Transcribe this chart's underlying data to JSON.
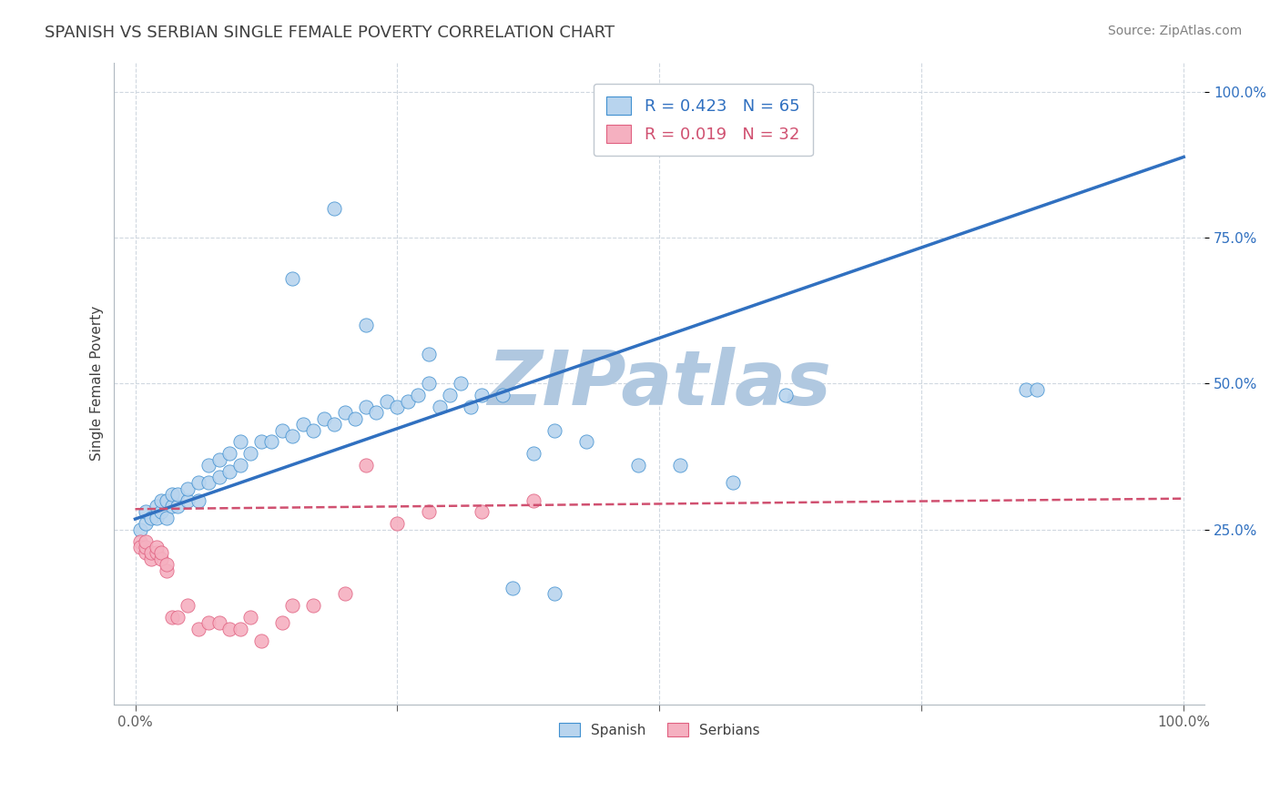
{
  "title": "SPANISH VS SERBIAN SINGLE FEMALE POVERTY CORRELATION CHART",
  "source": "Source: ZipAtlas.com",
  "ylabel": "Single Female Poverty",
  "xlim": [
    -0.02,
    1.02
  ],
  "ylim": [
    -0.05,
    1.05
  ],
  "xticks": [
    0,
    0.25,
    0.5,
    0.75,
    1.0
  ],
  "xticklabels": [
    "0.0%",
    "",
    "",
    "",
    "100.0%"
  ],
  "yticks": [
    0.25,
    0.5,
    0.75,
    1.0
  ],
  "yticklabels": [
    "25.0%",
    "50.0%",
    "75.0%",
    "100.0%"
  ],
  "spanish_R": 0.423,
  "spanish_N": 65,
  "serbian_R": 0.019,
  "serbian_N": 32,
  "spanish_color": "#b8d4ee",
  "serbian_color": "#f5b0c0",
  "spanish_edge_color": "#4090d0",
  "serbian_edge_color": "#e06080",
  "spanish_trend_color": "#3070c0",
  "serbian_trend_color": "#d05070",
  "watermark": "ZIPatlas",
  "watermark_color_zip": "#b0c8e0",
  "watermark_color_atlas": "#c8d8e8",
  "background_color": "#ffffff",
  "grid_color": "#d0d8e0",
  "title_color": "#404040",
  "spanish_trend_intercept": 0.268,
  "spanish_trend_slope": 0.62,
  "serbian_trend_intercept": 0.285,
  "serbian_trend_slope": 0.018,
  "spanish_x": [
    0.005,
    0.01,
    0.01,
    0.015,
    0.02,
    0.02,
    0.025,
    0.025,
    0.03,
    0.03,
    0.035,
    0.035,
    0.04,
    0.04,
    0.05,
    0.05,
    0.06,
    0.06,
    0.07,
    0.07,
    0.08,
    0.08,
    0.09,
    0.09,
    0.1,
    0.1,
    0.11,
    0.12,
    0.13,
    0.14,
    0.15,
    0.16,
    0.17,
    0.18,
    0.19,
    0.2,
    0.21,
    0.22,
    0.23,
    0.24,
    0.25,
    0.26,
    0.27,
    0.28,
    0.29,
    0.3,
    0.31,
    0.32,
    0.33,
    0.35,
    0.38,
    0.4,
    0.43,
    0.48,
    0.52,
    0.57,
    0.62,
    0.85,
    0.86,
    0.22,
    0.19,
    0.15,
    0.28,
    0.36,
    0.4
  ],
  "spanish_y": [
    0.25,
    0.26,
    0.28,
    0.27,
    0.27,
    0.29,
    0.28,
    0.3,
    0.27,
    0.3,
    0.29,
    0.31,
    0.29,
    0.31,
    0.3,
    0.32,
    0.3,
    0.33,
    0.33,
    0.36,
    0.34,
    0.37,
    0.35,
    0.38,
    0.36,
    0.4,
    0.38,
    0.4,
    0.4,
    0.42,
    0.41,
    0.43,
    0.42,
    0.44,
    0.43,
    0.45,
    0.44,
    0.46,
    0.45,
    0.47,
    0.46,
    0.47,
    0.48,
    0.5,
    0.46,
    0.48,
    0.5,
    0.46,
    0.48,
    0.48,
    0.38,
    0.42,
    0.4,
    0.36,
    0.36,
    0.33,
    0.48,
    0.49,
    0.49,
    0.6,
    0.8,
    0.68,
    0.55,
    0.15,
    0.14
  ],
  "serbian_x": [
    0.005,
    0.005,
    0.01,
    0.01,
    0.01,
    0.015,
    0.015,
    0.02,
    0.02,
    0.025,
    0.025,
    0.03,
    0.03,
    0.035,
    0.04,
    0.05,
    0.06,
    0.07,
    0.08,
    0.09,
    0.1,
    0.11,
    0.12,
    0.14,
    0.15,
    0.17,
    0.2,
    0.22,
    0.25,
    0.28,
    0.33,
    0.38
  ],
  "serbian_y": [
    0.23,
    0.22,
    0.21,
    0.22,
    0.23,
    0.2,
    0.21,
    0.21,
    0.22,
    0.2,
    0.21,
    0.18,
    0.19,
    0.1,
    0.1,
    0.12,
    0.08,
    0.09,
    0.09,
    0.08,
    0.08,
    0.1,
    0.06,
    0.09,
    0.12,
    0.12,
    0.14,
    0.36,
    0.26,
    0.28,
    0.28,
    0.3
  ]
}
